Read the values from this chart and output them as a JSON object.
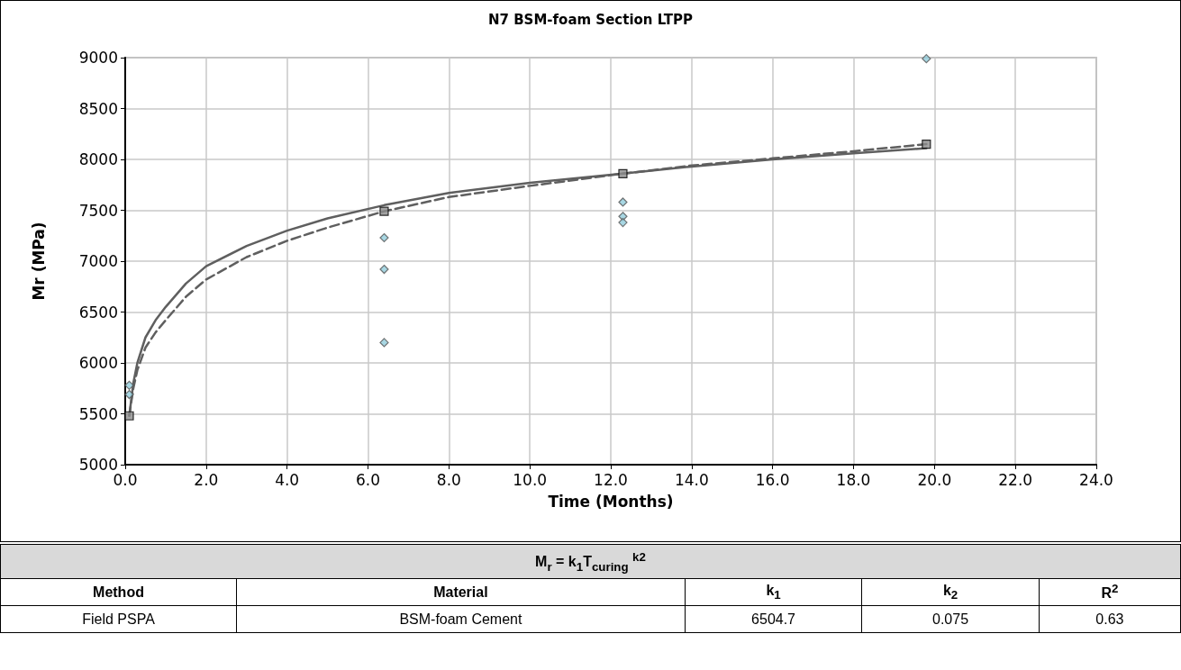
{
  "chart_data": {
    "type": "scatter",
    "title": "N7 BSM-foam Section LTPP",
    "xlabel": "Time (Months)",
    "ylabel": "Mr (MPa)",
    "xlim": [
      0,
      24
    ],
    "ylim": [
      5000,
      9000
    ],
    "xticks": [
      {
        "value": 0,
        "label": "0.0"
      },
      {
        "value": 2,
        "label": "2.0"
      },
      {
        "value": 4,
        "label": "4.0"
      },
      {
        "value": 6,
        "label": "6.0"
      },
      {
        "value": 8,
        "label": "8.0"
      },
      {
        "value": 10,
        "label": "10.0"
      },
      {
        "value": 12,
        "label": "12.0"
      },
      {
        "value": 14,
        "label": "14.0"
      },
      {
        "value": 16,
        "label": "16.0"
      },
      {
        "value": 18,
        "label": "18.0"
      },
      {
        "value": 20,
        "label": "20.0"
      },
      {
        "value": 22,
        "label": "22.0"
      },
      {
        "value": 24,
        "label": "24.0"
      }
    ],
    "yticks": [
      5000,
      5500,
      6000,
      6500,
      7000,
      7500,
      8000,
      8500,
      9000
    ],
    "grid": true,
    "series": [
      {
        "type": "line",
        "color": "#5f5f5f",
        "marker": "none",
        "line_style": "solid",
        "x": [
          0.1,
          0.2,
          0.3,
          0.5,
          0.75,
          1.0,
          1.5,
          2.0,
          3.0,
          4.0,
          5.0,
          6.4,
          8.0,
          10.0,
          12.3,
          14.0,
          16.0,
          18.0,
          19.8
        ],
        "values": [
          5480,
          5800,
          6000,
          6250,
          6420,
          6550,
          6780,
          6950,
          7150,
          7300,
          7420,
          7550,
          7670,
          7770,
          7860,
          7930,
          8000,
          8060,
          8110
        ]
      },
      {
        "type": "line",
        "color": "#5f5f5f",
        "marker": "none",
        "line_style": "dashed",
        "x": [
          0.1,
          0.2,
          0.3,
          0.5,
          0.75,
          1.0,
          1.5,
          2.0,
          3.0,
          4.0,
          5.0,
          6.4,
          8.0,
          10.0,
          12.3,
          14.0,
          16.0,
          18.0,
          19.8
        ],
        "values": [
          5480,
          5750,
          5930,
          6150,
          6300,
          6420,
          6650,
          6820,
          7040,
          7200,
          7330,
          7490,
          7630,
          7740,
          7860,
          7940,
          8010,
          8080,
          8150
        ]
      },
      {
        "color": "#92cddc",
        "marker": "diamond",
        "x": [
          0.1,
          0.1,
          6.4,
          6.4,
          6.4,
          12.3,
          12.3,
          12.3,
          19.8
        ],
        "values": [
          5780,
          5690,
          7230,
          6920,
          6200,
          7580,
          7440,
          7380,
          8990
        ]
      },
      {
        "color": "#8c8c8c",
        "marker": "square",
        "x": [
          0.1,
          6.4,
          12.3,
          19.8
        ],
        "values": [
          5480,
          7490,
          7860,
          8150
        ]
      }
    ],
    "annotations": [
      "M$_{r}$ = k$_{1}$T$_{curing}$ $^{k2}$",
      "Method",
      "Material",
      "k$_{1}$",
      "k$_{2}$",
      "R$^{2}$",
      "Field PSPA",
      "BSM-foam Cement",
      "6504.7",
      "0.075",
      "0.63"
    ]
  }
}
